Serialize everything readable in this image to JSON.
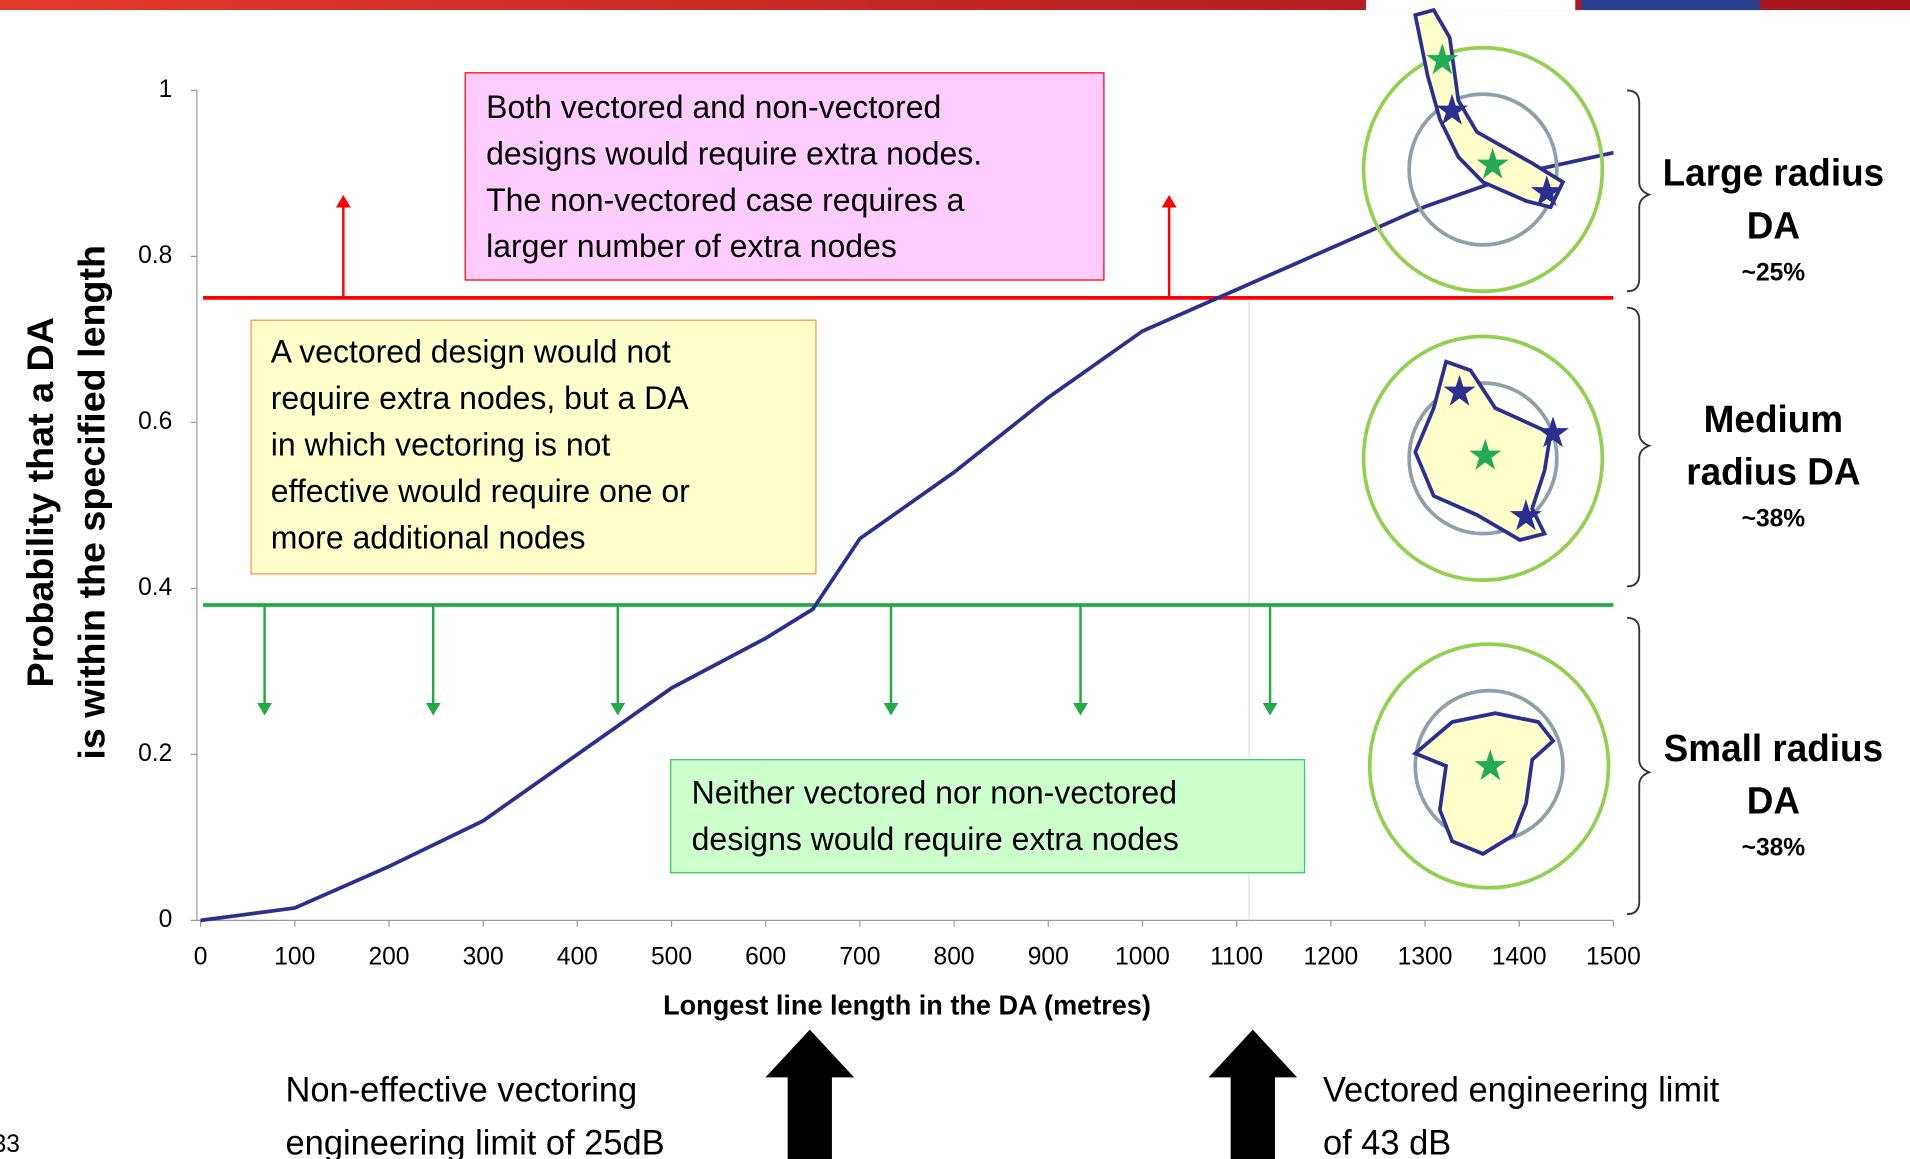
{
  "chart_data": {
    "type": "line",
    "ylabel": [
      "Probability that a DA",
      "is within the specified length"
    ],
    "xlabel": "Longest line length in the DA (metres)",
    "x": [
      0,
      100,
      200,
      300,
      400,
      500,
      600,
      650,
      700,
      800,
      900,
      1000,
      1100,
      1200,
      1300,
      1400,
      1500
    ],
    "values": [
      0,
      0.015,
      0.065,
      0.12,
      0.2,
      0.28,
      0.34,
      0.375,
      0.46,
      0.54,
      0.63,
      0.71,
      0.76,
      0.81,
      0.86,
      0.9,
      0.925
    ],
    "color": "#2b2f8f",
    "xlim": [
      0,
      1500
    ],
    "xticks": [
      0,
      100,
      200,
      300,
      400,
      500,
      600,
      700,
      800,
      900,
      1000,
      1100,
      1200,
      1300,
      1400,
      1500
    ],
    "ylim": [
      0,
      1
    ],
    "yticks": [
      0,
      0.2,
      0.4,
      0.6,
      0.8,
      1
    ],
    "thresholds": [
      {
        "value": 0.75,
        "color": "#ff0000"
      },
      {
        "value": 0.38,
        "color": "#22aa44"
      }
    ],
    "annotations": [
      [
        "Both vectored and non-vectored",
        "designs would require extra nodes.",
        "The non-vectored case requires a",
        "larger number of extra nodes"
      ],
      [
        "A vectored design would not",
        "require extra nodes, but a DA",
        "in which vectoring is not",
        "effective would require one or",
        "more  additional nodes"
      ],
      [
        "Neither vectored nor non-vectored",
        "designs would require extra nodes"
      ]
    ],
    "regions": [
      {
        "label": [
          "Large radius",
          "DA"
        ],
        "share": "~25%"
      },
      {
        "label": [
          "Medium",
          "radius DA"
        ],
        "share": "~38%"
      },
      {
        "label": [
          "Small radius",
          "DA"
        ],
        "share": "~38%"
      }
    ],
    "limits": [
      [
        "Non-effective vectoring",
        "engineering limit of 25dB"
      ],
      [
        "Vectored engineering limit",
        "of 43 dB"
      ]
    ],
    "page_number": "33"
  }
}
